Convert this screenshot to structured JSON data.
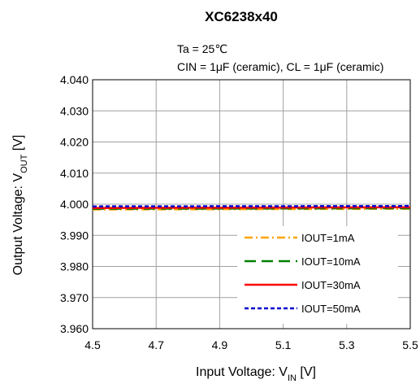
{
  "chart_data": {
    "type": "line",
    "title": "XC6238x40",
    "conditions": [
      "Ta = 25℃",
      "CIN = 1μF (ceramic), CL = 1μF (ceramic)"
    ],
    "xlabel": {
      "main": "Input Voltage: V",
      "sub": "IN",
      "unit": " [V]"
    },
    "ylabel": {
      "main": "Output Voltage: V",
      "sub": "OUT",
      "unit": " [V]"
    },
    "xlim": [
      4.5,
      5.5
    ],
    "ylim": [
      3.96,
      4.04
    ],
    "x_ticks": [
      "4.5",
      "4.7",
      "4.9",
      "5.1",
      "5.3",
      "5.5"
    ],
    "y_ticks": [
      "4.040",
      "4.030",
      "4.020",
      "4.010",
      "4.000",
      "3.990",
      "3.980",
      "3.970",
      "3.960"
    ],
    "grid": true,
    "legend_position": "bottom-right",
    "series": [
      {
        "name": "IOUT=1mA",
        "color": "#FFA500",
        "dash": "dashdot",
        "x": [
          4.5,
          5.5
        ],
        "y": [
          3.9983,
          3.9985
        ]
      },
      {
        "name": "IOUT=10mA",
        "color": "#008000",
        "dash": "dash",
        "x": [
          4.5,
          5.5
        ],
        "y": [
          3.9985,
          3.9987
        ]
      },
      {
        "name": "IOUT=30mA",
        "color": "#FF0000",
        "dash": "solid",
        "x": [
          4.5,
          5.5
        ],
        "y": [
          3.9988,
          3.999
        ]
      },
      {
        "name": "IOUT=50mA",
        "color": "#0000CC",
        "dash": "dot",
        "x": [
          4.5,
          5.5
        ],
        "y": [
          3.9993,
          3.9994
        ]
      }
    ]
  }
}
